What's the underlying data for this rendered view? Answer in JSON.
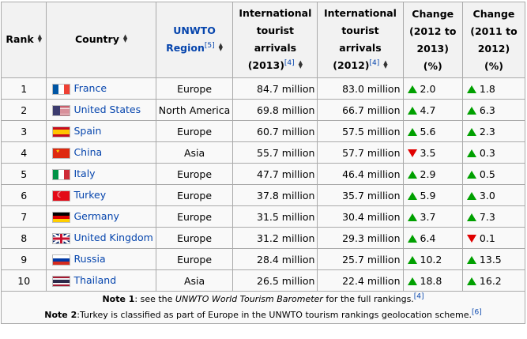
{
  "headers": {
    "rank": "Rank",
    "country": "Country",
    "region_line1": "UNWTO",
    "region_line2": "Region",
    "region_ref": "[5]",
    "arrivals2013_line1": "International",
    "arrivals2013_line2": "tourist",
    "arrivals2013_line3": "arrivals",
    "arrivals2013_line4": "(2013)",
    "arrivals2013_ref": "[4]",
    "arrivals2012_line1": "International",
    "arrivals2012_line2": "tourist",
    "arrivals2012_line3": "arrivals",
    "arrivals2012_line4": "(2012)",
    "arrivals2012_ref": "[4]",
    "change1213_line1": "Change",
    "change1213_line2": "(2012 to",
    "change1213_line3": "2013)",
    "change1213_line4": "(%)",
    "change1112_line1": "Change",
    "change1112_line2": "(2011 to",
    "change1112_line3": "2012)",
    "change1112_line4": "(%)",
    "sort_icon": "sort-arrows-icon"
  },
  "rows": [
    {
      "rank": "1",
      "country": "France",
      "flag": "france",
      "region": "Europe",
      "a2013": "84.7 million",
      "a2012": "83.0 million",
      "c1": "2.0",
      "c1_dir": "up",
      "c2": "1.8",
      "c2_dir": "up"
    },
    {
      "rank": "2",
      "country": "United States",
      "flag": "usa",
      "region": "North America",
      "a2013": "69.8 million",
      "a2012": "66.7 million",
      "c1": "4.7",
      "c1_dir": "up",
      "c2": "6.3",
      "c2_dir": "up"
    },
    {
      "rank": "3",
      "country": "Spain",
      "flag": "spain",
      "region": "Europe",
      "a2013": "60.7 million",
      "a2012": "57.5 million",
      "c1": "5.6",
      "c1_dir": "up",
      "c2": "2.3",
      "c2_dir": "up"
    },
    {
      "rank": "4",
      "country": "China",
      "flag": "china",
      "region": "Asia",
      "a2013": "55.7 million",
      "a2012": "57.7 million",
      "c1": "3.5",
      "c1_dir": "down",
      "c2": "0.3",
      "c2_dir": "up"
    },
    {
      "rank": "5",
      "country": "Italy",
      "flag": "italy",
      "region": "Europe",
      "a2013": "47.7 million",
      "a2012": "46.4 million",
      "c1": "2.9",
      "c1_dir": "up",
      "c2": "0.5",
      "c2_dir": "up"
    },
    {
      "rank": "6",
      "country": "Turkey",
      "flag": "turkey",
      "region": "Europe",
      "a2013": "37.8 million",
      "a2012": "35.7 million",
      "c1": "5.9",
      "c1_dir": "up",
      "c2": "3.0",
      "c2_dir": "up"
    },
    {
      "rank": "7",
      "country": "Germany",
      "flag": "germany",
      "region": "Europe",
      "a2013": "31.5 million",
      "a2012": "30.4 million",
      "c1": "3.7",
      "c1_dir": "up",
      "c2": "7.3",
      "c2_dir": "up"
    },
    {
      "rank": "8",
      "country": "United Kingdom",
      "flag": "uk",
      "region": "Europe",
      "a2013": "31.2 million",
      "a2012": "29.3 million",
      "c1": "6.4",
      "c1_dir": "up",
      "c2": "0.1",
      "c2_dir": "down"
    },
    {
      "rank": "9",
      "country": "Russia",
      "flag": "russia",
      "region": "Europe",
      "a2013": "28.4 million",
      "a2012": "25.7 million",
      "c1": "10.2",
      "c1_dir": "up",
      "c2": "13.5",
      "c2_dir": "up"
    },
    {
      "rank": "10",
      "country": "Thailand",
      "flag": "thailand",
      "region": "Asia",
      "a2013": "26.5 million",
      "a2012": "22.4 million",
      "c1": "18.8",
      "c1_dir": "up",
      "c2": "16.2",
      "c2_dir": "up"
    }
  ],
  "notes": {
    "note1_label": "Note 1",
    "note1_pre": ": see the ",
    "note1_italic": "UNWTO World Tourism Barometer",
    "note1_post": " for the full rankings.",
    "note1_ref": "[4]",
    "note2_label": "Note 2",
    "note2_text": ":Turkey is classified as part of Europe in the UNWTO tourism rankings geolocation scheme.",
    "note2_ref": "[6]"
  },
  "colors": {
    "increase": "#00a000",
    "decrease": "#e00000",
    "link": "#0645ad",
    "header_bg": "#f2f2f2"
  }
}
